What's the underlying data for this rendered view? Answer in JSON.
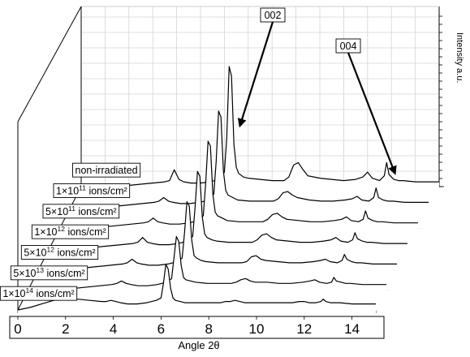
{
  "chart_data": {
    "type": "line",
    "subtype": "3d-waterfall",
    "title": "",
    "xlabel": "Angle 2θ",
    "ylabel": "Intensity a.u.",
    "xlim": [
      0,
      15
    ],
    "x_ticks": [
      "0",
      "2",
      "4",
      "6",
      "8",
      "10",
      "12",
      "14"
    ],
    "grid": true,
    "legend": "labels at left of each trace",
    "peak_annotations": [
      {
        "label": "002",
        "x": 6.3
      },
      {
        "label": "004",
        "x": 12.8
      }
    ],
    "x": [
      0.0,
      0.5,
      1.0,
      1.5,
      2.0,
      2.5,
      3.0,
      3.5,
      3.7,
      3.9,
      4.1,
      4.3,
      4.6,
      5.0,
      5.4,
      5.8,
      6.0,
      6.1,
      6.2,
      6.3,
      6.4,
      6.5,
      6.6,
      6.8,
      7.0,
      7.5,
      8.0,
      8.5,
      8.7,
      8.9,
      9.1,
      9.3,
      9.5,
      10.0,
      10.5,
      11.0,
      11.5,
      11.8,
      12.0,
      12.2,
      12.5,
      12.7,
      12.8,
      12.9,
      13.1,
      13.3,
      13.5,
      14.0,
      14.5,
      15.0
    ],
    "series": [
      {
        "name": "non-irradiated",
        "values": [
          0,
          1,
          1,
          1,
          1,
          2,
          3,
          4,
          5,
          14,
          6,
          4,
          3,
          3,
          4,
          6,
          12,
          40,
          100,
          92,
          35,
          16,
          11,
          8,
          7,
          6,
          5,
          5,
          8,
          18,
          20,
          14,
          9,
          7,
          6,
          5,
          6,
          8,
          12,
          7,
          5,
          9,
          20,
          10,
          6,
          5,
          5,
          4,
          4,
          4
        ]
      },
      {
        "name": "1×10¹¹ ions/cm²",
        "values": [
          0,
          1,
          1,
          1,
          1,
          2,
          3,
          4,
          5,
          8,
          5,
          4,
          3,
          3,
          4,
          6,
          11,
          38,
          80,
          75,
          30,
          14,
          10,
          8,
          6,
          5,
          5,
          5,
          7,
          12,
          13,
          10,
          8,
          6,
          5,
          5,
          6,
          7,
          9,
          6,
          5,
          8,
          16,
          8,
          6,
          5,
          5,
          4,
          4,
          4
        ]
      },
      {
        "name": "5×10¹¹ ions/cm²",
        "values": [
          0,
          1,
          1,
          1,
          1,
          2,
          3,
          4,
          5,
          8,
          5,
          4,
          3,
          3,
          4,
          6,
          10,
          36,
          72,
          68,
          28,
          13,
          10,
          8,
          6,
          5,
          5,
          5,
          7,
          11,
          12,
          9,
          7,
          6,
          5,
          5,
          6,
          7,
          9,
          6,
          5,
          7,
          14,
          8,
          6,
          5,
          5,
          4,
          4,
          4
        ]
      },
      {
        "name": "1×10¹² ions/cm²",
        "values": [
          0,
          1,
          1,
          1,
          1,
          2,
          3,
          4,
          5,
          9,
          5,
          4,
          3,
          3,
          4,
          6,
          10,
          34,
          64,
          60,
          26,
          12,
          9,
          7,
          6,
          5,
          5,
          5,
          7,
          11,
          12,
          9,
          7,
          6,
          5,
          5,
          6,
          7,
          9,
          6,
          5,
          7,
          13,
          8,
          6,
          5,
          5,
          4,
          4,
          4
        ]
      },
      {
        "name": "5×10¹² ions/cm²",
        "values": [
          0,
          1,
          1,
          1,
          1,
          2,
          3,
          4,
          5,
          8,
          5,
          4,
          3,
          3,
          4,
          6,
          9,
          30,
          56,
          52,
          24,
          11,
          9,
          7,
          6,
          5,
          5,
          5,
          6,
          10,
          11,
          8,
          7,
          6,
          5,
          5,
          6,
          7,
          8,
          6,
          5,
          7,
          12,
          8,
          6,
          5,
          5,
          4,
          4,
          4
        ]
      },
      {
        "name": "5×10¹³ ions/cm²",
        "values": [
          0,
          1,
          1,
          1,
          1,
          2,
          3,
          4,
          5,
          7,
          5,
          4,
          3,
          3,
          4,
          6,
          9,
          26,
          44,
          40,
          20,
          10,
          8,
          7,
          6,
          5,
          5,
          5,
          6,
          8,
          9,
          7,
          6,
          6,
          5,
          5,
          6,
          7,
          8,
          6,
          5,
          6,
          10,
          7,
          6,
          5,
          5,
          4,
          4,
          4
        ]
      },
      {
        "name": "1×10¹⁴ ions/cm²",
        "values": [
          0,
          2,
          5,
          8,
          9,
          9,
          8,
          7,
          7,
          8,
          7,
          6,
          5,
          5,
          6,
          8,
          10,
          22,
          38,
          34,
          18,
          10,
          8,
          7,
          6,
          6,
          6,
          6,
          7,
          7,
          8,
          7,
          6,
          6,
          6,
          6,
          6,
          7,
          7,
          6,
          6,
          7,
          9,
          7,
          6,
          6,
          6,
          5,
          5,
          5
        ]
      }
    ]
  },
  "series_labels": [
    {
      "parts": [
        {
          "t": "non-irradiated"
        }
      ]
    },
    {
      "parts": [
        {
          "t": "1×10"
        },
        {
          "t": "11",
          "sup": true
        },
        {
          "t": " ions/cm²"
        }
      ]
    },
    {
      "parts": [
        {
          "t": "5×10"
        },
        {
          "t": "11",
          "sup": true
        },
        {
          "t": " ions/cm²"
        }
      ]
    },
    {
      "parts": [
        {
          "t": "1×10"
        },
        {
          "t": "12",
          "sup": true
        },
        {
          "t": " ions/cm²"
        }
      ]
    },
    {
      "parts": [
        {
          "t": "5×10"
        },
        {
          "t": "12",
          "sup": true
        },
        {
          "t": " ions/cm²"
        }
      ]
    },
    {
      "parts": [
        {
          "t": "5×10"
        },
        {
          "t": "13",
          "sup": true
        },
        {
          "t": " ions/cm²"
        }
      ]
    },
    {
      "parts": [
        {
          "t": "1×10"
        },
        {
          "t": "14",
          "sup": true
        },
        {
          "t": " ions/cm²"
        }
      ]
    }
  ]
}
